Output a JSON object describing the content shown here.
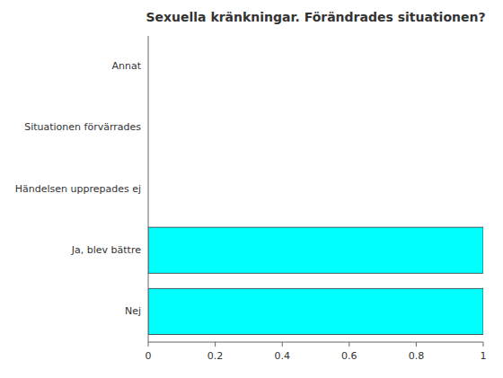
{
  "chart_data": {
    "type": "bar",
    "orientation": "horizontal",
    "title": "Sexuella kränkningar. Förändrades situationen?",
    "categories": [
      "Nej",
      "Ja, blev bättre",
      "Händelsen upprepades ej",
      "Situationen förvärrades",
      "Annat"
    ],
    "values": [
      1.0,
      1.0,
      0.0,
      0.0,
      0.0
    ],
    "color": "#00FFFF",
    "xlim": [
      0,
      1
    ],
    "xticks": [
      0,
      0.2,
      0.4,
      0.6,
      0.8,
      1
    ],
    "grid": false
  }
}
